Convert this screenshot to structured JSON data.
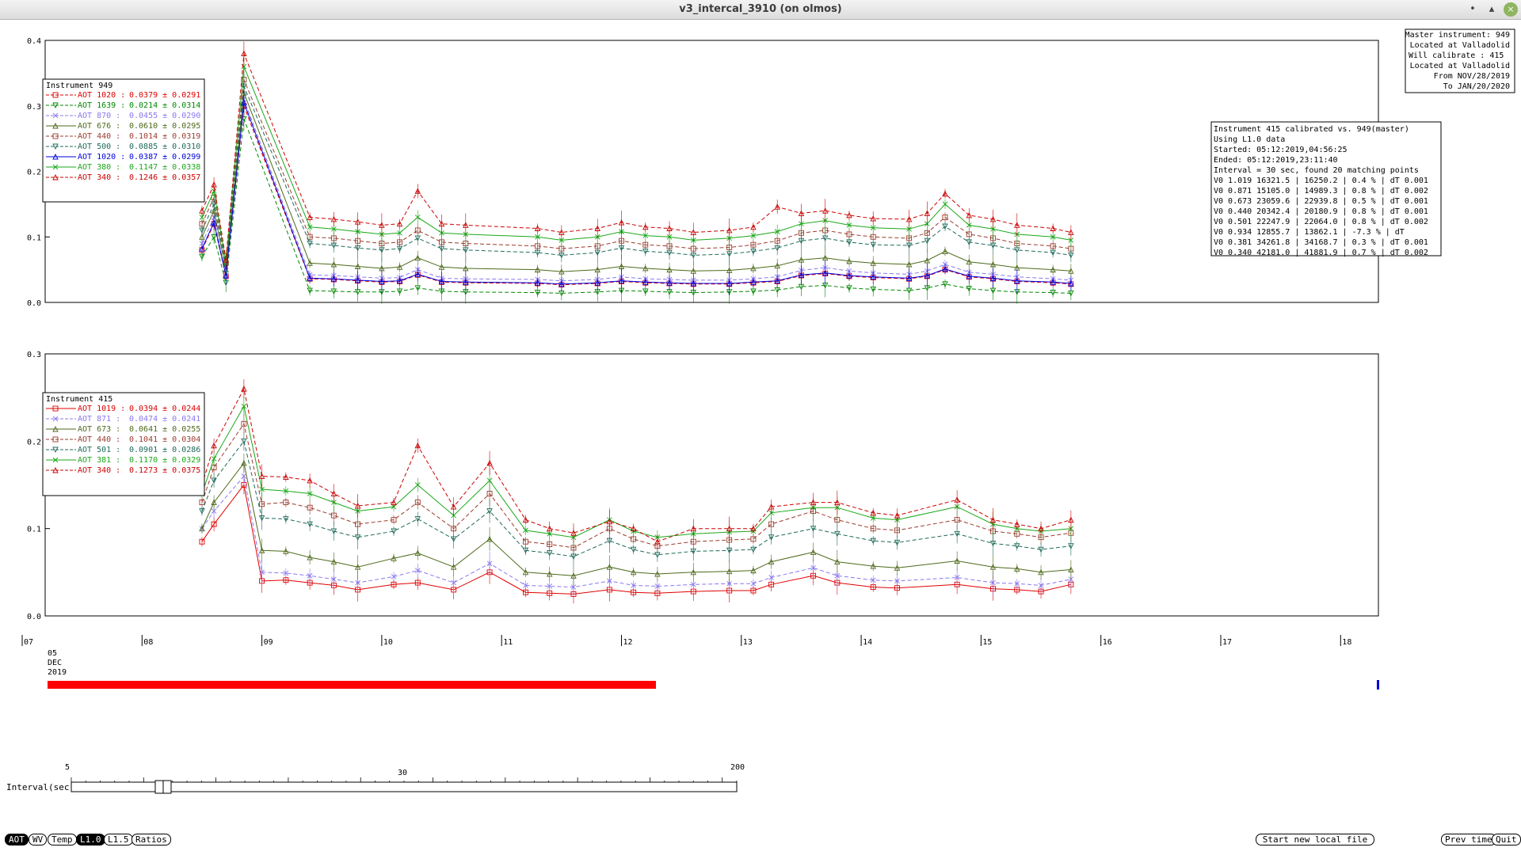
{
  "window": {
    "title": "v3_intercal_3910 (on olmos)",
    "min_glyph": "•",
    "max_glyph": "▴",
    "close_glyph": "×"
  },
  "master_box": {
    "lines": [
      "Master instrument: 949",
      "Located at Valladolid",
      "Will calibrate   : 415",
      "Located at Valladolid",
      "From NOV/28/2019",
      "To JAN/20/2020"
    ]
  },
  "calib_box": {
    "lines": [
      "Instrument 415 calibrated vs. 949(master)",
      "Using L1.0 data",
      "Started: 05:12:2019,04:56:25",
      "Ended: 05:12:2019,23:11:40",
      "Interval = 30 sec, found 20 matching points",
      "V0 1.019  16321.5 | 16250.2 |  0.4 % | dT 0.001",
      "V0 0.871  15105.0 | 14989.3 |  0.8 % | dT 0.002",
      "V0 0.673  23059.6 | 22939.8 |  0.5 % | dT 0.001",
      "V0 0.440  20342.4 | 20180.9 |  0.8 % | dT 0.001",
      "V0 0.501  22247.9 | 22064.0 |  0.8 % | dT 0.002",
      "V0 0.934  12855.7 | 13862.1 | -7.3 % | dT",
      "V0 0.381  34261.8 | 34168.7 |  0.3 % | dT 0.001",
      "V0 0.340  42181.0 | 41881.9 |  0.7 % | dT 0.002"
    ]
  },
  "colors": {
    "red": "#e00000",
    "green": "#008800",
    "lavender": "#8878f0",
    "olive": "#4d6a1a",
    "brown": "#9b3b2c",
    "teal": "#1e6b5a",
    "blue": "#0000e0",
    "bright_green": "#1aa81a",
    "dark_red": "#cc0000"
  },
  "top_panel": {
    "title": "Instrument 949",
    "yticks": [
      "0.4",
      "0.3",
      "0.2",
      "0.1",
      "0.0"
    ],
    "ymax": 0.4,
    "legend": [
      {
        "label": "AOT 1020 :",
        "value": "0.0379 ± 0.0291",
        "color": "red",
        "marker": "square",
        "dash": true
      },
      {
        "label": "AOT 1639 :",
        "value": "0.0214 ± 0.0314",
        "color": "green",
        "marker": "tri-down",
        "dash": true
      },
      {
        "label": "AOT 870 :",
        "value": "0.0455 ± 0.0290",
        "color": "lavender",
        "marker": "x",
        "dash": true
      },
      {
        "label": "AOT 676 :",
        "value": "0.0610 ± 0.0295",
        "color": "olive",
        "marker": "tri-up",
        "dash": false
      },
      {
        "label": "AOT 440 :",
        "value": "0.1014 ± 0.0319",
        "color": "brown",
        "marker": "square",
        "dash": true
      },
      {
        "label": "AOT 500 :",
        "value": "0.0885 ± 0.0310",
        "color": "teal",
        "marker": "tri-down",
        "dash": true
      },
      {
        "label": "AOT 1020 :",
        "value": "0.0387 ± 0.0299",
        "color": "blue",
        "marker": "tri-up",
        "dash": false
      },
      {
        "label": "AOT 380 :",
        "value": "0.1147 ± 0.0338",
        "color": "bright_green",
        "marker": "x",
        "dash": false
      },
      {
        "label": "AOT 340 :",
        "value": "0.1246 ± 0.0357",
        "color": "dark_red",
        "marker": "tri-up",
        "dash": true
      }
    ]
  },
  "bottom_panel": {
    "title": "Instrument 415",
    "yticks": [
      "0.3",
      "0.2",
      "0.1",
      "0.0"
    ],
    "ymax": 0.3,
    "legend": [
      {
        "label": "AOT 1019 :",
        "value": "0.0394 ± 0.0244",
        "color": "red",
        "marker": "square",
        "dash": false
      },
      {
        "label": "AOT 871 :",
        "value": "0.0474 ± 0.0241",
        "color": "lavender",
        "marker": "x",
        "dash": true
      },
      {
        "label": "AOT 673 :",
        "value": "0.0641 ± 0.0255",
        "color": "olive",
        "marker": "tri-up",
        "dash": false
      },
      {
        "label": "AOT 440 :",
        "value": "0.1041 ± 0.0304",
        "color": "brown",
        "marker": "square",
        "dash": true
      },
      {
        "label": "AOT 501 :",
        "value": "0.0901 ± 0.0286",
        "color": "teal",
        "marker": "tri-down",
        "dash": true
      },
      {
        "label": "AOT 381 :",
        "value": "0.1170 ± 0.0329",
        "color": "bright_green",
        "marker": "x",
        "dash": false
      },
      {
        "label": "AOT 340 :",
        "value": "0.1273 ± 0.0375",
        "color": "dark_red",
        "marker": "tri-up",
        "dash": true
      }
    ]
  },
  "time_axis": {
    "ticks": [
      "07",
      "08",
      "09",
      "10",
      "11",
      "12",
      "13",
      "14",
      "15",
      "16",
      "17",
      "18"
    ],
    "date_day": "05",
    "date_month": "DEC",
    "date_year": "2019"
  },
  "interval_slider": {
    "label": "Interval(sec)",
    "min_label": "5",
    "mid_label": "30",
    "max_label": "200"
  },
  "buttons": {
    "aot": "AOT",
    "wv": "WV",
    "temp": "Temp",
    "l10": "L1.0",
    "l15": "L1.5",
    "ratios": "Ratios",
    "start_new": "Start new local file",
    "prev_time": "Prev time",
    "quit": "Quit"
  },
  "chart_data": [
    {
      "type": "line",
      "title": "Instrument 949",
      "x_unit": "hour (UTC), 05 DEC 2019",
      "xlim": [
        7,
        18.3
      ],
      "ylim": [
        0,
        0.4
      ],
      "x": [
        8.5,
        8.6,
        8.7,
        8.85,
        9.4,
        9.6,
        9.8,
        10.0,
        10.15,
        10.3,
        10.5,
        10.7,
        11.3,
        11.5,
        11.8,
        12.0,
        12.2,
        12.4,
        12.6,
        12.9,
        13.1,
        13.3,
        13.5,
        13.7,
        13.9,
        14.1,
        14.4,
        14.55,
        14.7,
        14.9,
        15.1,
        15.3,
        15.6,
        15.75
      ],
      "series": [
        {
          "name": "AOT 1020",
          "color": "#e00000",
          "values": [
            0.08,
            0.12,
            0.04,
            0.3,
            0.036,
            0.035,
            0.033,
            0.031,
            0.032,
            0.042,
            0.031,
            0.03,
            0.029,
            0.027,
            0.029,
            0.032,
            0.03,
            0.029,
            0.028,
            0.028,
            0.03,
            0.032,
            0.041,
            0.044,
            0.04,
            0.038,
            0.036,
            0.04,
            0.05,
            0.039,
            0.036,
            0.032,
            0.03,
            0.028
          ]
        },
        {
          "name": "AOT 1639",
          "color": "#008800",
          "values": [
            0.07,
            0.1,
            0.03,
            0.28,
            0.018,
            0.017,
            0.016,
            0.016,
            0.017,
            0.022,
            0.017,
            0.016,
            0.015,
            0.014,
            0.016,
            0.018,
            0.017,
            0.016,
            0.015,
            0.016,
            0.017,
            0.019,
            0.024,
            0.026,
            0.022,
            0.02,
            0.018,
            0.022,
            0.028,
            0.021,
            0.018,
            0.016,
            0.015,
            0.014
          ]
        },
        {
          "name": "AOT 870",
          "color": "#8878f0",
          "values": [
            0.09,
            0.13,
            0.04,
            0.31,
            0.042,
            0.041,
            0.039,
            0.037,
            0.038,
            0.05,
            0.037,
            0.036,
            0.035,
            0.033,
            0.035,
            0.039,
            0.036,
            0.035,
            0.034,
            0.034,
            0.036,
            0.039,
            0.049,
            0.053,
            0.048,
            0.045,
            0.043,
            0.048,
            0.058,
            0.046,
            0.043,
            0.039,
            0.036,
            0.034
          ]
        },
        {
          "name": "AOT 676",
          "color": "#4d6a1a",
          "values": [
            0.1,
            0.14,
            0.05,
            0.32,
            0.06,
            0.058,
            0.055,
            0.052,
            0.054,
            0.068,
            0.054,
            0.052,
            0.05,
            0.047,
            0.05,
            0.055,
            0.052,
            0.05,
            0.048,
            0.049,
            0.052,
            0.056,
            0.065,
            0.068,
            0.063,
            0.06,
            0.058,
            0.064,
            0.078,
            0.062,
            0.058,
            0.053,
            0.05,
            0.048
          ]
        },
        {
          "name": "AOT 440",
          "color": "#9b3b2c",
          "values": [
            0.12,
            0.16,
            0.06,
            0.34,
            0.1,
            0.098,
            0.094,
            0.09,
            0.092,
            0.11,
            0.092,
            0.09,
            0.086,
            0.082,
            0.086,
            0.094,
            0.088,
            0.086,
            0.082,
            0.084,
            0.088,
            0.094,
            0.106,
            0.11,
            0.104,
            0.1,
            0.098,
            0.106,
            0.13,
            0.104,
            0.098,
            0.09,
            0.086,
            0.082
          ]
        },
        {
          "name": "AOT 500",
          "color": "#1e6b5a",
          "values": [
            0.11,
            0.15,
            0.055,
            0.33,
            0.09,
            0.087,
            0.083,
            0.08,
            0.082,
            0.098,
            0.082,
            0.08,
            0.076,
            0.072,
            0.076,
            0.083,
            0.078,
            0.076,
            0.072,
            0.074,
            0.078,
            0.083,
            0.094,
            0.098,
            0.092,
            0.088,
            0.087,
            0.094,
            0.116,
            0.092,
            0.087,
            0.08,
            0.076,
            0.072
          ]
        },
        {
          "name": "AOT 1020",
          "color": "#0000e0",
          "values": [
            0.082,
            0.122,
            0.041,
            0.305,
            0.037,
            0.036,
            0.034,
            0.032,
            0.033,
            0.043,
            0.032,
            0.031,
            0.03,
            0.028,
            0.03,
            0.033,
            0.031,
            0.03,
            0.029,
            0.029,
            0.031,
            0.033,
            0.042,
            0.045,
            0.041,
            0.039,
            0.037,
            0.041,
            0.051,
            0.04,
            0.037,
            0.033,
            0.031,
            0.029
          ]
        },
        {
          "name": "AOT 380",
          "color": "#1aa81a",
          "values": [
            0.13,
            0.17,
            0.06,
            0.36,
            0.115,
            0.112,
            0.108,
            0.104,
            0.106,
            0.13,
            0.106,
            0.104,
            0.1,
            0.095,
            0.1,
            0.108,
            0.102,
            0.1,
            0.095,
            0.098,
            0.102,
            0.108,
            0.12,
            0.125,
            0.118,
            0.114,
            0.112,
            0.12,
            0.15,
            0.118,
            0.112,
            0.104,
            0.1,
            0.095
          ]
        },
        {
          "name": "AOT 340",
          "color": "#cc0000",
          "values": [
            0.14,
            0.18,
            0.065,
            0.38,
            0.13,
            0.127,
            0.123,
            0.118,
            0.12,
            0.17,
            0.12,
            0.118,
            0.113,
            0.107,
            0.113,
            0.122,
            0.115,
            0.113,
            0.107,
            0.11,
            0.115,
            0.146,
            0.136,
            0.14,
            0.133,
            0.128,
            0.127,
            0.136,
            0.166,
            0.133,
            0.127,
            0.118,
            0.113,
            0.107
          ]
        }
      ]
    },
    {
      "type": "line",
      "title": "Instrument 415",
      "x_unit": "hour (UTC), 05 DEC 2019",
      "xlim": [
        7,
        18.3
      ],
      "ylim": [
        0,
        0.3
      ],
      "x": [
        8.5,
        8.6,
        8.85,
        9.0,
        9.2,
        9.4,
        9.6,
        9.8,
        10.1,
        10.3,
        10.6,
        10.9,
        11.2,
        11.4,
        11.6,
        11.9,
        12.1,
        12.3,
        12.6,
        12.9,
        13.1,
        13.25,
        13.6,
        13.8,
        14.1,
        14.3,
        14.8,
        15.1,
        15.3,
        15.5,
        15.75
      ],
      "series": [
        {
          "name": "AOT 1019",
          "color": "#e00000",
          "values": [
            0.085,
            0.105,
            0.15,
            0.04,
            0.041,
            0.038,
            0.035,
            0.03,
            0.036,
            0.038,
            0.03,
            0.05,
            0.027,
            0.026,
            0.025,
            0.03,
            0.027,
            0.026,
            0.028,
            0.029,
            0.029,
            0.036,
            0.046,
            0.038,
            0.033,
            0.032,
            0.036,
            0.031,
            0.03,
            0.028,
            0.036
          ]
        },
        {
          "name": "AOT 871",
          "color": "#8878f0",
          "values": [
            0.1,
            0.12,
            0.16,
            0.05,
            0.049,
            0.046,
            0.042,
            0.038,
            0.045,
            0.052,
            0.038,
            0.06,
            0.035,
            0.034,
            0.033,
            0.04,
            0.035,
            0.034,
            0.036,
            0.037,
            0.037,
            0.044,
            0.055,
            0.046,
            0.041,
            0.04,
            0.044,
            0.038,
            0.037,
            0.035,
            0.042
          ]
        },
        {
          "name": "AOT 673",
          "color": "#4d6a1a",
          "values": [
            0.1,
            0.13,
            0.175,
            0.075,
            0.074,
            0.067,
            0.062,
            0.056,
            0.066,
            0.072,
            0.056,
            0.088,
            0.05,
            0.048,
            0.046,
            0.056,
            0.05,
            0.048,
            0.05,
            0.051,
            0.052,
            0.062,
            0.073,
            0.062,
            0.057,
            0.055,
            0.063,
            0.056,
            0.054,
            0.05,
            0.053
          ]
        },
        {
          "name": "AOT 440",
          "color": "#9b3b2c",
          "values": [
            0.13,
            0.17,
            0.22,
            0.128,
            0.13,
            0.124,
            0.115,
            0.105,
            0.11,
            0.13,
            0.1,
            0.14,
            0.085,
            0.082,
            0.078,
            0.1,
            0.088,
            0.08,
            0.085,
            0.087,
            0.088,
            0.105,
            0.12,
            0.11,
            0.1,
            0.098,
            0.11,
            0.097,
            0.094,
            0.09,
            0.095
          ]
        },
        {
          "name": "AOT 501",
          "color": "#1e6b5a",
          "values": [
            0.12,
            0.155,
            0.2,
            0.112,
            0.111,
            0.105,
            0.097,
            0.09,
            0.097,
            0.111,
            0.088,
            0.12,
            0.075,
            0.072,
            0.068,
            0.086,
            0.076,
            0.07,
            0.074,
            0.075,
            0.076,
            0.09,
            0.1,
            0.094,
            0.086,
            0.084,
            0.094,
            0.083,
            0.08,
            0.076,
            0.08
          ]
        },
        {
          "name": "AOT 381",
          "color": "#1aa81a",
          "values": [
            0.14,
            0.18,
            0.24,
            0.145,
            0.143,
            0.14,
            0.13,
            0.12,
            0.125,
            0.15,
            0.115,
            0.155,
            0.098,
            0.094,
            0.09,
            0.11,
            0.097,
            0.09,
            0.094,
            0.096,
            0.097,
            0.118,
            0.124,
            0.124,
            0.112,
            0.11,
            0.125,
            0.105,
            0.1,
            0.097,
            0.1
          ]
        },
        {
          "name": "AOT 340",
          "color": "#cc0000",
          "values": [
            0.15,
            0.195,
            0.26,
            0.16,
            0.159,
            0.155,
            0.14,
            0.126,
            0.13,
            0.195,
            0.125,
            0.175,
            0.11,
            0.1,
            0.095,
            0.108,
            0.1,
            0.085,
            0.1,
            0.1,
            0.1,
            0.125,
            0.13,
            0.13,
            0.118,
            0.115,
            0.133,
            0.11,
            0.105,
            0.1,
            0.11
          ]
        }
      ]
    }
  ]
}
